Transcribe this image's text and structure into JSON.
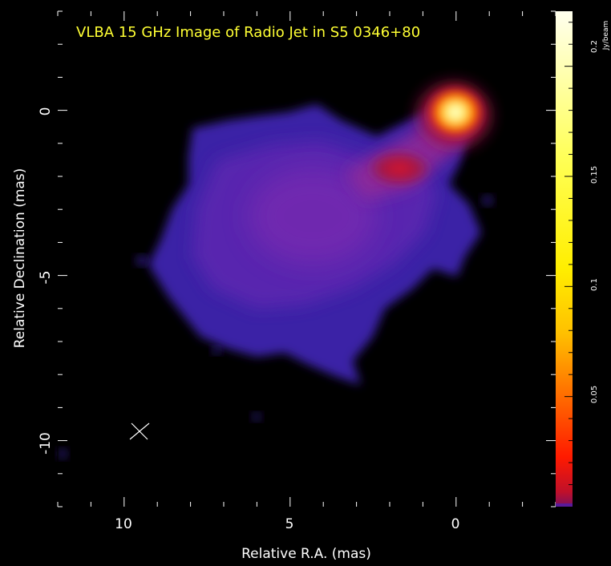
{
  "title": "VLBA 15 GHz Image of Radio Jet in S5 0346+80",
  "xlabel": "Relative R.A. (mas)",
  "ylabel": "Relative Declination (mas)",
  "colorbar_label": "Jy/beam",
  "colors": {
    "background": "#000000",
    "title": "#ffff33",
    "axis": "#ffffff",
    "frame": "#000000"
  },
  "chart_data": {
    "type": "heatmap",
    "title": "VLBA 15 GHz Image of Radio Jet in S5 0346+80",
    "xlabel": "Relative R.A. (mas)",
    "ylabel": "Relative Declination (mas)",
    "x_ticks": [
      "10",
      "5",
      "0"
    ],
    "y_ticks": [
      "0",
      "-5",
      "-10"
    ],
    "x_tick_values": [
      10,
      5,
      0
    ],
    "y_tick_values": [
      0,
      -5,
      -10
    ],
    "xlim": [
      12,
      -3
    ],
    "ylim": [
      -12,
      3
    ],
    "x_inverted": true,
    "colorbar": {
      "label": "Jy/beam",
      "ticks": [
        "0.05",
        "0.1",
        "0.15",
        "0.2"
      ],
      "tick_values": [
        0.05,
        0.1,
        0.15,
        0.2
      ],
      "range": [
        0,
        0.225
      ],
      "colormap": [
        "#1a0a4a",
        "#3a20a8",
        "#6a2ab8",
        "#a02890",
        "#d01a40",
        "#ff2a00",
        "#ff8a00",
        "#ffd000",
        "#ffff66",
        "#ffffe6"
      ]
    },
    "beam_marker": {
      "ra": 9.6,
      "dec": -9.6
    },
    "features": [
      {
        "name": "core",
        "ra": 0.0,
        "dec": 0.0,
        "peak": 0.21
      },
      {
        "name": "jet knot",
        "ra": 1.8,
        "dec": -1.7,
        "peak": 0.04
      },
      {
        "name": "diffuse emission",
        "ra": 4.5,
        "dec": -3.0,
        "peak": 0.015
      }
    ]
  }
}
